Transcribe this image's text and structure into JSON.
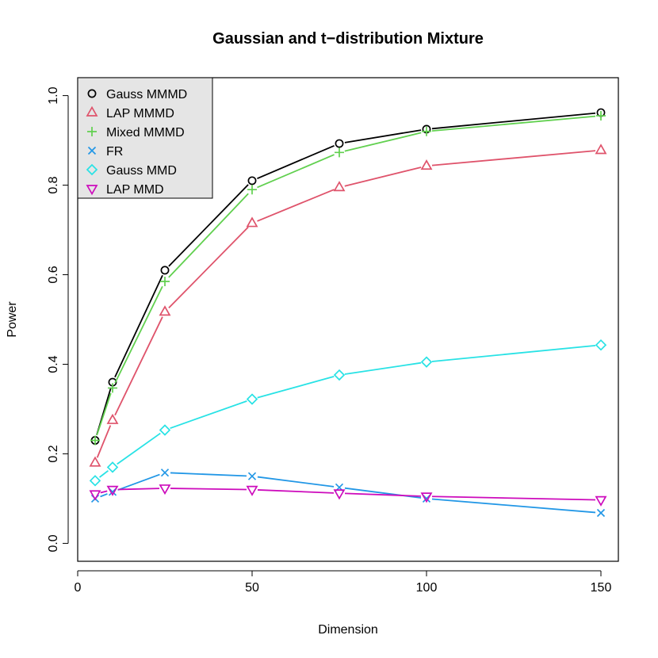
{
  "chart_data": {
    "type": "line",
    "title": "Gaussian and t−distribution Mixture",
    "xlabel": "Dimension",
    "ylabel": "Power",
    "xlim": [
      0,
      155
    ],
    "ylim": [
      -0.04,
      1.04
    ],
    "xticks": [
      0,
      50,
      100,
      150
    ],
    "yticks": [
      0.0,
      0.2,
      0.4,
      0.6,
      0.8,
      1.0
    ],
    "xtick_labels": [
      "0",
      "50",
      "100",
      "150"
    ],
    "ytick_labels": [
      "0.0",
      "0.2",
      "0.4",
      "0.6",
      "0.8",
      "1.0"
    ],
    "grid": false,
    "legend_position": "top-left",
    "x": [
      5,
      10,
      25,
      50,
      75,
      100,
      150
    ],
    "series": [
      {
        "name": "Gauss MMMD",
        "color": "#000000",
        "marker": "circle",
        "values": [
          0.23,
          0.36,
          0.61,
          0.81,
          0.893,
          0.925,
          0.962
        ]
      },
      {
        "name": "LAP MMMD",
        "color": "#DF536B",
        "marker": "triangle-up",
        "values": [
          0.18,
          0.275,
          0.517,
          0.715,
          0.795,
          0.843,
          0.878
        ]
      },
      {
        "name": "Mixed MMMD",
        "color": "#61D04F",
        "marker": "plus",
        "values": [
          0.23,
          0.347,
          0.585,
          0.79,
          0.873,
          0.92,
          0.955
        ]
      },
      {
        "name": "FR",
        "color": "#2297E6",
        "marker": "cross",
        "values": [
          0.1,
          0.115,
          0.158,
          0.15,
          0.125,
          0.1,
          0.068
        ]
      },
      {
        "name": "Gauss MMD",
        "color": "#28E2E5",
        "marker": "diamond",
        "values": [
          0.14,
          0.17,
          0.253,
          0.322,
          0.376,
          0.405,
          0.443
        ]
      },
      {
        "name": "LAP MMD",
        "color": "#CD0BBC",
        "marker": "triangle-down",
        "values": [
          0.11,
          0.12,
          0.123,
          0.12,
          0.112,
          0.105,
          0.097
        ]
      }
    ]
  }
}
